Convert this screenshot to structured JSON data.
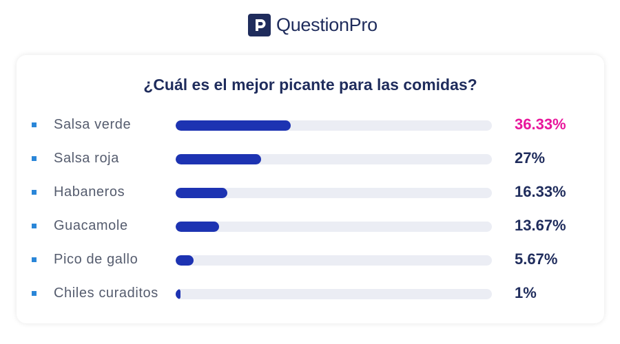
{
  "brand": {
    "name": "QuestionPro",
    "mark_glyph": "P",
    "color": "#1f2c5c"
  },
  "chart_data": {
    "type": "bar",
    "orientation": "horizontal",
    "title": "¿Cuál es el mejor picante para las comidas?",
    "categories": [
      "Salsa verde",
      "Salsa roja",
      "Habaneros",
      "Guacamole",
      "Pico de gallo",
      "Chiles curaditos"
    ],
    "values": [
      36.33,
      27,
      16.33,
      13.67,
      5.67,
      1
    ],
    "value_labels": [
      "36.33%",
      "27%",
      "16.33%",
      "13.67%",
      "5.67%",
      "1%"
    ],
    "xlim": [
      0,
      100
    ],
    "bar_color": "#1d33b2",
    "track_color": "#ebedf4",
    "highlight_color": "#e8159b",
    "value_color": "#1f2c5c",
    "bullet_color": "#2a86d8"
  }
}
